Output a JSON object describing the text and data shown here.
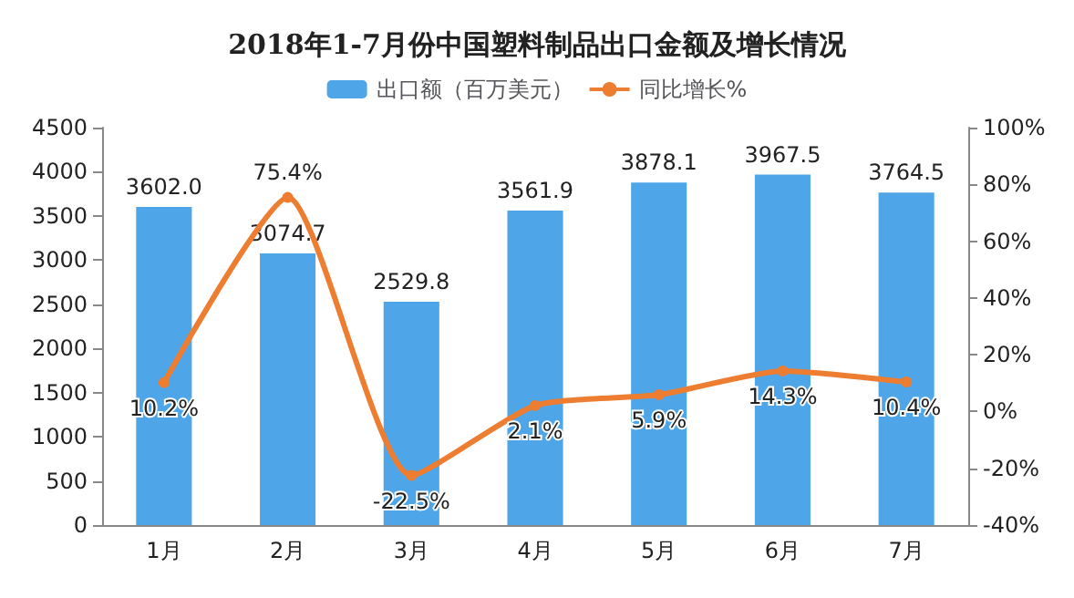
{
  "chart_data": {
    "type": "bar",
    "title": "2018年1-7月份中国塑料制品出口金额及增长情况",
    "categories": [
      "1月",
      "2月",
      "3月",
      "4月",
      "5月",
      "6月",
      "7月"
    ],
    "series": [
      {
        "name": "出口额（百万美元）",
        "color": "#4ea6e8",
        "values": [
          3602.0,
          3074.7,
          2529.8,
          3561.9,
          3878.1,
          3967.5,
          3764.5
        ],
        "value_labels": [
          "3602.0",
          "3074.7",
          "2529.8",
          "3561.9",
          "3878.1",
          "3967.5",
          "3764.5"
        ]
      },
      {
        "name": "同比增长%",
        "type": "line",
        "axis": "y2",
        "color": "#ed7d31",
        "values": [
          10.2,
          75.4,
          -22.5,
          2.1,
          5.9,
          14.3,
          10.4
        ],
        "value_labels": [
          "10.2%",
          "75.4%",
          "-22.5%",
          "2.1%",
          "5.9%",
          "14.3%",
          "10.4%"
        ]
      }
    ],
    "ylim": [
      0,
      4500
    ],
    "yticks": [
      0,
      500,
      1000,
      1500,
      2000,
      2500,
      3000,
      3500,
      4000,
      4500
    ],
    "y2lim": [
      -40,
      100
    ],
    "y2ticks": [
      {
        "value": -40,
        "label": "-40%"
      },
      {
        "value": -20,
        "label": "-20%"
      },
      {
        "value": 0,
        "label": "0%"
      },
      {
        "value": 20,
        "label": "20%"
      },
      {
        "value": 40,
        "label": "40%"
      },
      {
        "value": 60,
        "label": "60%"
      },
      {
        "value": 80,
        "label": "80%"
      },
      {
        "value": 100,
        "label": "100%"
      }
    ],
    "legend": "top",
    "marker": "circle",
    "line_style": "solid",
    "grid": false
  }
}
